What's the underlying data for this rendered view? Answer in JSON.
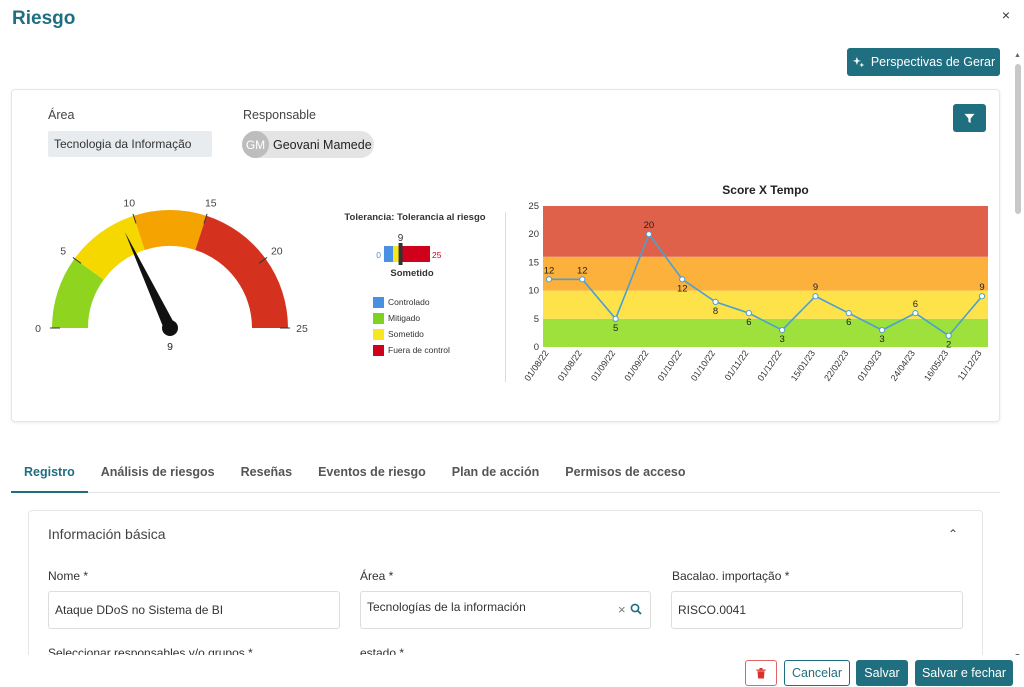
{
  "window": {
    "title": "Riesgo",
    "close_label": "×"
  },
  "header": {
    "insights_label": "Perspectivas de Gerar"
  },
  "summary": {
    "area_label": "Área",
    "area_value": "Tecnologia da Informação",
    "responsible_label": "Responsable",
    "responsible_initials": "GM",
    "responsible_name": "Geovani Mamede"
  },
  "gauge": {
    "value": 9,
    "value_label": "9",
    "min": 0,
    "max": 25,
    "ticks": [
      "0",
      "5",
      "10",
      "15",
      "20",
      "25"
    ],
    "bands": [
      {
        "from": 0,
        "to": 5,
        "color": "#8fd41e"
      },
      {
        "from": 5,
        "to": 10,
        "color": "#f5d800"
      },
      {
        "from": 10,
        "to": 15,
        "color": "#f5a300"
      },
      {
        "from": 15,
        "to": 25,
        "color": "#d4321e"
      }
    ]
  },
  "tolerance": {
    "title": "Tolerancia: Tolerancia al riesgo",
    "value_label": "9",
    "min_label": "0",
    "max_label": "25",
    "status": "Sometido",
    "legend": [
      {
        "label": "Controlado",
        "color": "#4a90e2"
      },
      {
        "label": "Mitigado",
        "color": "#7ed321"
      },
      {
        "label": "Sometido",
        "color": "#f8e71c"
      },
      {
        "label": "Fuera de control",
        "color": "#d0021b"
      }
    ]
  },
  "chart_data": {
    "type": "line",
    "title": "Score X Tempo",
    "x": [
      "01/08/22",
      "01/08/22",
      "01/09/22",
      "01/09/22",
      "01/10/22",
      "01/10/22",
      "01/11/22",
      "01/12/22",
      "15/01/23",
      "22/02/23",
      "01/03/23",
      "24/04/23",
      "16/05/23",
      "11/12/23"
    ],
    "series": [
      {
        "values": [
          12,
          12,
          5,
          20,
          12,
          8,
          6,
          3,
          9,
          6,
          3,
          6,
          2,
          9
        ],
        "color": "#4a9fd4"
      }
    ],
    "ylim": [
      0,
      25
    ],
    "yticks": [
      "0",
      "5",
      "10",
      "15",
      "20",
      "25"
    ],
    "bands": [
      {
        "from": 0,
        "to": 5,
        "color": "#9ee03c"
      },
      {
        "from": 5,
        "to": 10,
        "color": "#fde24a"
      },
      {
        "from": 10,
        "to": 16,
        "color": "#fbb13c"
      },
      {
        "from": 16,
        "to": 25,
        "color": "#e0614a"
      }
    ]
  },
  "tabs": [
    {
      "label": "Registro",
      "active": true
    },
    {
      "label": "Análisis de riesgos"
    },
    {
      "label": "Reseñas"
    },
    {
      "label": "Eventos de riesgo"
    },
    {
      "label": "Plan de acción"
    },
    {
      "label": "Permisos de acceso"
    }
  ],
  "basic_info": {
    "title": "Información básica",
    "name_label": "Nome *",
    "name_value": "Ataque DDoS no Sistema de BI",
    "area_label": "Área *",
    "area_value": "Tecnologías de la información",
    "import_label": "Bacalao. importação *",
    "import_value": "RISCO.0041",
    "responsibles_label": "Seleccionar responsables y/o grupos *",
    "state_label": "estado *"
  },
  "footer": {
    "cancel_label": "Cancelar",
    "save_label": "Salvar",
    "save_close_label": "Salvar e fechar"
  },
  "colors": {
    "accent": "#1f6f80",
    "danger": "#e06666"
  }
}
